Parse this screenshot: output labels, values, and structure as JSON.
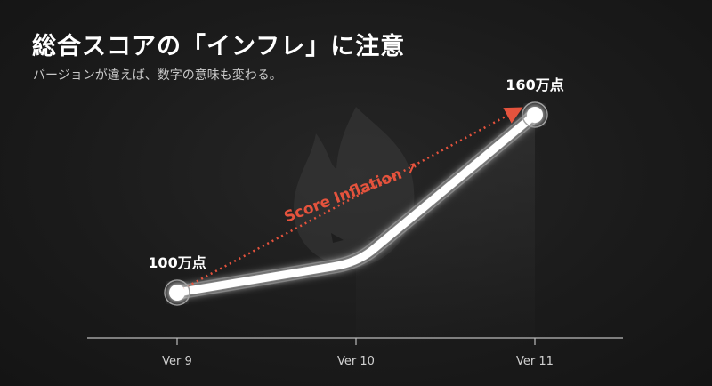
{
  "title": "総合スコアの「インフレ」に注意",
  "subtitle": "バージョンが違えば、数字の意味も変わる。",
  "chart_data": {
    "type": "line",
    "categories": [
      "Ver 9",
      "Ver 10",
      "Ver 11"
    ],
    "values": [
      100,
      110,
      160
    ],
    "unit": "万点",
    "data_labels": [
      "100万点",
      "",
      "160万点"
    ],
    "annotation": "Score Inflation ↗",
    "annotation_color": "#e5533d",
    "line_color": "#ffffff",
    "background_icon": "flame-icon",
    "grid": false
  }
}
